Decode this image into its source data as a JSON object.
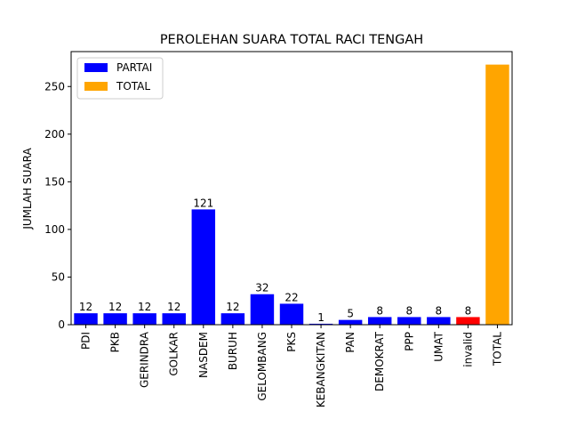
{
  "chart_data": {
    "type": "bar",
    "title": "PEROLEHAN SUARA TOTAL RACI TENGAH",
    "xlabel": "",
    "ylabel": "JUMLAH SUARA",
    "ylim": [
      0,
      286.65
    ],
    "yticks": [
      0,
      50,
      100,
      150,
      200,
      250
    ],
    "grid": false,
    "legend_position": "top-left",
    "categories": [
      "PDI",
      "PKB",
      "GERINDRA",
      "GOLKAR",
      "NASDEM",
      "BURUH",
      "GELOMBANG",
      "PKS",
      "KEBANGKITAN",
      "PAN",
      "DEMOKRAT",
      "PPP",
      "UMAT",
      "invalid",
      "TOTAL"
    ],
    "values": [
      12,
      12,
      12,
      12,
      121,
      12,
      32,
      22,
      1,
      5,
      8,
      8,
      8,
      8,
      273
    ],
    "bar_labels": [
      "12",
      "12",
      "12",
      "12",
      "121",
      "12",
      "32",
      "22",
      "1",
      "5",
      "8",
      "8",
      "8",
      "8",
      ""
    ],
    "bar_colors": [
      "#0000ff",
      "#0000ff",
      "#0000ff",
      "#0000ff",
      "#0000ff",
      "#0000ff",
      "#0000ff",
      "#0000ff",
      "#0000ff",
      "#0000ff",
      "#0000ff",
      "#0000ff",
      "#0000ff",
      "#ff0000",
      "#ffa500"
    ],
    "legend": [
      {
        "label": "PARTAI",
        "color": "#0000ff"
      },
      {
        "label": "TOTAL",
        "color": "#ffa500"
      }
    ]
  }
}
